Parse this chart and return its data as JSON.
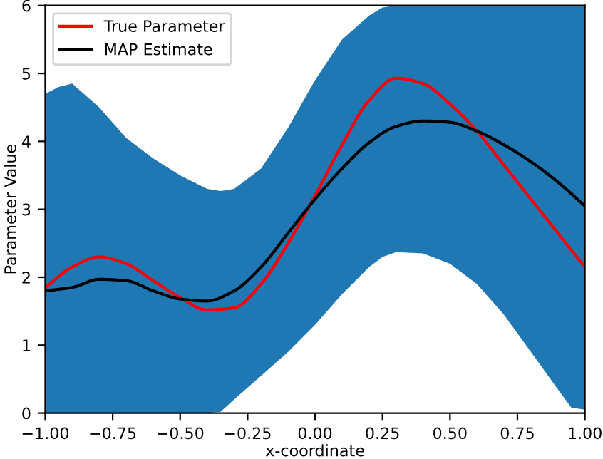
{
  "chart_data": {
    "type": "line",
    "xlabel": "x-coordinate",
    "ylabel": "Parameter Value",
    "xlim": [
      -1.0,
      1.0
    ],
    "ylim": [
      0,
      6
    ],
    "xticks": [
      {
        "value": -1.0,
        "label": "−1.00"
      },
      {
        "value": -0.75,
        "label": "−0.75"
      },
      {
        "value": -0.5,
        "label": "−0.50"
      },
      {
        "value": -0.25,
        "label": "−0.25"
      },
      {
        "value": 0.0,
        "label": "0.00"
      },
      {
        "value": 0.25,
        "label": "0.25"
      },
      {
        "value": 0.5,
        "label": "0.50"
      },
      {
        "value": 0.75,
        "label": "0.75"
      },
      {
        "value": 1.0,
        "label": "1.00"
      }
    ],
    "yticks": [
      0,
      1,
      2,
      3,
      4,
      5,
      6
    ],
    "grid": false,
    "legend": "top left",
    "marker": "none",
    "line_style": "solid",
    "x": [
      -1.0,
      -0.9,
      -0.8,
      -0.7,
      -0.6,
      -0.5,
      -0.4,
      -0.3,
      -0.2,
      -0.1,
      0.0,
      0.1,
      0.2,
      0.3,
      0.4,
      0.5,
      0.6,
      0.7,
      0.8,
      0.9,
      1.0
    ],
    "series": [
      {
        "color": "#1f77b4",
        "x": [
          -1.0,
          -0.95,
          -0.9,
          -0.8,
          -0.7,
          -0.6,
          -0.5,
          -0.4,
          -0.35,
          -0.3,
          -0.2,
          -0.1,
          0.0,
          0.1,
          0.2,
          0.25,
          0.3,
          0.4,
          0.5,
          0.6,
          0.7,
          0.8,
          0.9,
          0.95,
          1.0
        ],
        "values": [
          null,
          null,
          null,
          null,
          null,
          null,
          null,
          null,
          null,
          null,
          null,
          null,
          null,
          null,
          null,
          null,
          null,
          null,
          null,
          null,
          null,
          null,
          null,
          null,
          null
        ],
        "lower": [
          0,
          0,
          0,
          0,
          0,
          0,
          0,
          0,
          0.02,
          0.2,
          0.55,
          0.9,
          1.3,
          1.75,
          2.15,
          2.3,
          2.37,
          2.35,
          2.2,
          1.9,
          1.45,
          0.9,
          0.35,
          0.08,
          0.05
        ],
        "upper": [
          4.7,
          4.8,
          4.85,
          4.5,
          4.05,
          3.75,
          3.5,
          3.3,
          3.27,
          3.3,
          3.6,
          4.2,
          4.9,
          5.5,
          5.85,
          5.97,
          6,
          6,
          6,
          6,
          6,
          6,
          6,
          6,
          6
        ]
      },
      {
        "name": "True Parameter",
        "color": "#ff0000",
        "values": [
          1.85,
          2.15,
          2.3,
          2.2,
          1.95,
          1.7,
          1.52,
          1.55,
          1.9,
          2.5,
          3.2,
          3.95,
          4.6,
          4.93,
          4.85,
          4.55,
          4.15,
          3.65,
          3.15,
          2.65,
          2.15
        ]
      },
      {
        "name": "MAP Estimate",
        "color": "#000000",
        "values": [
          1.8,
          1.85,
          1.97,
          1.95,
          1.8,
          1.68,
          1.65,
          1.8,
          2.15,
          2.65,
          3.15,
          3.6,
          3.98,
          4.22,
          4.3,
          4.28,
          4.15,
          3.95,
          3.7,
          3.4,
          3.05
        ]
      }
    ]
  }
}
